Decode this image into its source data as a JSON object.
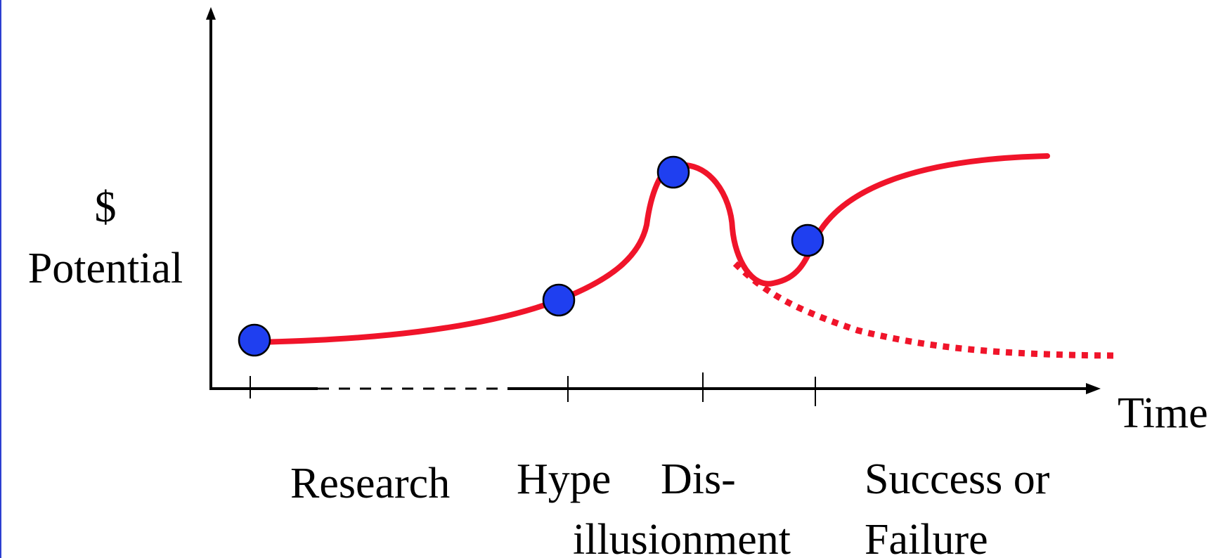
{
  "y_axis": {
    "label_line1": "$",
    "label_line2": "Potential"
  },
  "x_axis": {
    "label": "Time"
  },
  "phases": {
    "research": "Research",
    "hype": "Hype",
    "disillusionment_line1": "Dis-",
    "disillusionment_line2": "illusionment",
    "outcome_line1": "Success or",
    "outcome_line2": "Failure"
  },
  "colors": {
    "curve": "#f0142a",
    "point_fill": "#1f3ff0",
    "point_stroke": "#000000",
    "axis": "#000000",
    "left_border": "#2c3fd0"
  },
  "curves": {
    "main": "solid",
    "failure_branch": "dotted"
  },
  "points": [
    "research-point",
    "hype-point",
    "peak-point",
    "recovery-point"
  ]
}
